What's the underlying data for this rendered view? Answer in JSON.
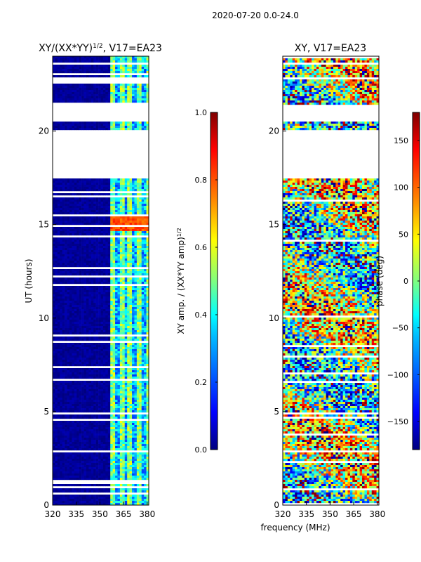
{
  "suptitle": "2020-07-20 0.0-24.0",
  "colors": {
    "background": "#ffffff",
    "axis": "#000000",
    "jet": [
      "#00007f",
      "#0000ff",
      "#007fff",
      "#00ffff",
      "#7fff7f",
      "#ffff00",
      "#ff7f00",
      "#ff0000",
      "#7f0000"
    ]
  },
  "chart_data": [
    {
      "type": "heatmap",
      "title": "XY/(XX*YY)",
      "title_exp": "1/2",
      "title_suffix": ", V17=EA23",
      "xlabel": "",
      "ylabel": "UT (hours)",
      "xlim": [
        320,
        381
      ],
      "ylim": [
        0,
        24
      ],
      "xticks": [
        320,
        335,
        350,
        365,
        380
      ],
      "xtick_labels": [
        "320",
        "335",
        "350",
        "365",
        "380"
      ],
      "yticks": [
        0,
        5,
        10,
        15,
        20
      ],
      "ytick_labels": [
        "0",
        "5",
        "10",
        "15",
        "20"
      ],
      "colorbar": {
        "label": "XY amp. / (XX*YY amp)",
        "label_exp": "1/2",
        "range": [
          0.0,
          1.0
        ],
        "ticks": [
          0.0,
          0.2,
          0.4,
          0.6,
          0.8,
          1.0
        ],
        "tick_labels": [
          "0.0",
          "0.2",
          "0.4",
          "0.6",
          "0.8",
          "1.0"
        ]
      },
      "data_gap_hours": [
        [
          17.5,
          20.1
        ],
        [
          20.6,
          21.5
        ]
      ],
      "description_values": {
        "low_band_320_356": 0.05,
        "high_band_356_381": 0.45,
        "peak_window_hours": [
          14.7,
          15.6
        ],
        "peak_value": 0.85
      }
    },
    {
      "type": "heatmap",
      "title": "XY, V17=EA23",
      "xlabel": "frequency (MHz)",
      "ylabel": "",
      "xlim": [
        320,
        381
      ],
      "ylim": [
        0,
        24
      ],
      "xticks": [
        320,
        335,
        350,
        365,
        380
      ],
      "xtick_labels": [
        "320",
        "335",
        "350",
        "365",
        "380"
      ],
      "yticks": [
        0,
        5,
        10,
        15,
        20
      ],
      "ytick_labels": [
        "0",
        "5",
        "10",
        "15",
        "20"
      ],
      "colorbar": {
        "label": "phase (deg)",
        "range": [
          -180,
          180
        ],
        "ticks": [
          -150,
          -100,
          -50,
          0,
          50,
          100,
          150
        ],
        "tick_labels": [
          "−150",
          "−100",
          "−50",
          "0",
          "50",
          "100",
          "150"
        ]
      },
      "data_gap_hours": [
        [
          17.5,
          20.1
        ],
        [
          20.6,
          21.5
        ]
      ],
      "description_values": {
        "phase_range_deg": [
          -180,
          180
        ]
      }
    }
  ]
}
